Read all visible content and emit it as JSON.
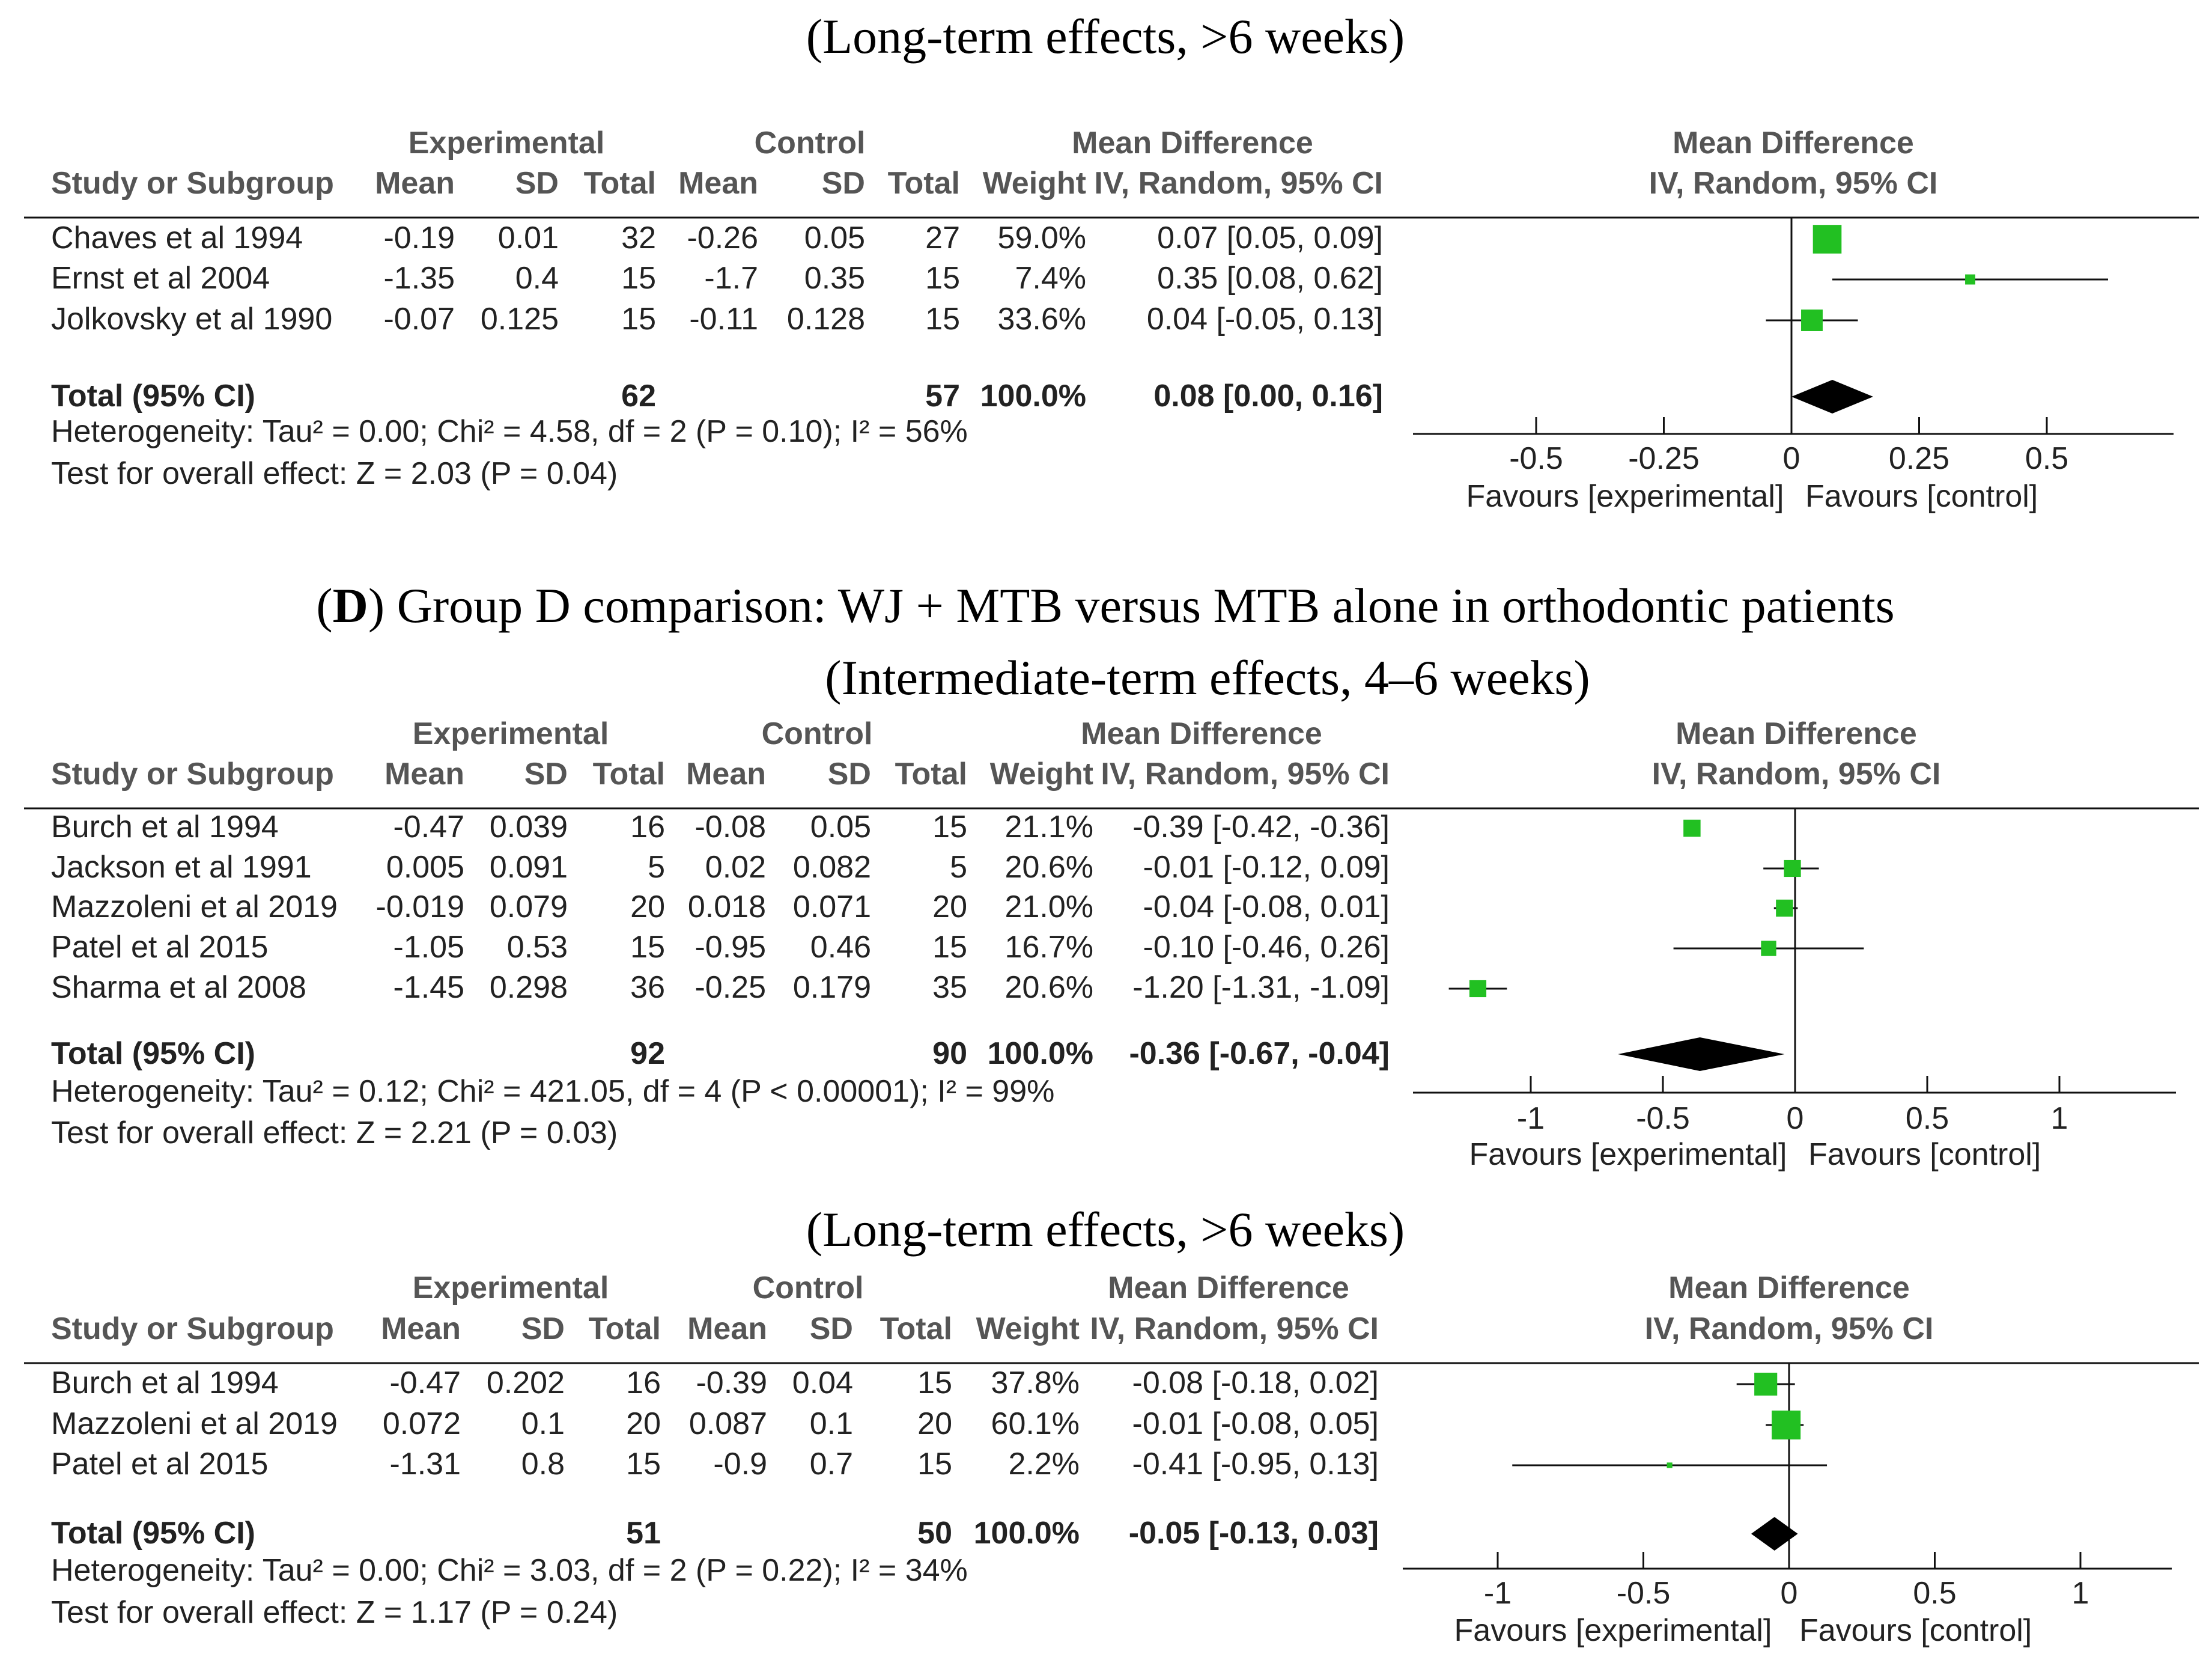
{
  "header_panel": {
    "subtitle": "(Long-term effects, >6 weeks)"
  },
  "panel_d": {
    "label": "D",
    "title_rest": ") Group D comparison: WJ + MTB versus MTB alone in orthodontic patients",
    "title_open": "("
  },
  "columns": {
    "experimental": "Experimental",
    "control": "Control",
    "study": "Study or Subgroup",
    "mean": "Mean",
    "sd": "SD",
    "total": "Total",
    "weight": "Weight",
    "md": "Mean Difference",
    "md_method": "IV, Random, 95% CI"
  },
  "axis_labels": {
    "favours_experimental": "Favours [experimental]",
    "favours_control": "Favours [control]"
  },
  "chart_data": [
    {
      "type": "forest",
      "subtitle": "(Long-term effects, >6 weeks)",
      "x_ticks": [
        "-0.5",
        "-0.25",
        "0",
        "0.25",
        "0.5"
      ],
      "xlim": [
        -0.75,
        0.75
      ],
      "studies": [
        {
          "name": "Chaves et al 1994",
          "e_mean": "-0.19",
          "e_sd": "0.01",
          "e_total": "32",
          "c_mean": "-0.26",
          "c_sd": "0.05",
          "c_total": "27",
          "weight": "59.0%",
          "ci_text": "0.07 [0.05, 0.09]",
          "md": 0.07,
          "lo": 0.05,
          "hi": 0.09,
          "w": 59.0
        },
        {
          "name": "Ernst et al 2004",
          "e_mean": "-1.35",
          "e_sd": "0.4",
          "e_total": "15",
          "c_mean": "-1.7",
          "c_sd": "0.35",
          "c_total": "15",
          "weight": "7.4%",
          "ci_text": "0.35 [0.08, 0.62]",
          "md": 0.35,
          "lo": 0.08,
          "hi": 0.62,
          "w": 7.4
        },
        {
          "name": "Jolkovsky et al 1990",
          "e_mean": "-0.07",
          "e_sd": "0.125",
          "e_total": "15",
          "c_mean": "-0.11",
          "c_sd": "0.128",
          "c_total": "15",
          "weight": "33.6%",
          "ci_text": "0.04 [-0.05, 0.13]",
          "md": 0.04,
          "lo": -0.05,
          "hi": 0.13,
          "w": 33.6
        }
      ],
      "total": {
        "label": "Total (95% CI)",
        "e_total": "62",
        "c_total": "57",
        "weight": "100.0%",
        "ci_text": "0.08 [0.00, 0.16]",
        "md": 0.08,
        "lo": 0.0,
        "hi": 0.16
      },
      "heterogeneity": "Heterogeneity: Tau² = 0.00; Chi² = 4.58, df = 2 (P = 0.10); I² = 56%",
      "overall": "Test for overall effect: Z = 2.03 (P = 0.04)"
    },
    {
      "type": "forest",
      "subtitle": "(Intermediate-term effects, 4–6 weeks)",
      "x_ticks": [
        "-1",
        "-0.5",
        "0",
        "0.5",
        "1"
      ],
      "xlim": [
        -1.4,
        1.4
      ],
      "studies": [
        {
          "name": "Burch et al 1994",
          "e_mean": "-0.47",
          "e_sd": "0.039",
          "e_total": "16",
          "c_mean": "-0.08",
          "c_sd": "0.05",
          "c_total": "15",
          "weight": "21.1%",
          "ci_text": "-0.39 [-0.42, -0.36]",
          "md": -0.39,
          "lo": -0.42,
          "hi": -0.36,
          "w": 21.1
        },
        {
          "name": "Jackson et al 1991",
          "e_mean": "0.005",
          "e_sd": "0.091",
          "e_total": "5",
          "c_mean": "0.02",
          "c_sd": "0.082",
          "c_total": "5",
          "weight": "20.6%",
          "ci_text": "-0.01 [-0.12, 0.09]",
          "md": -0.01,
          "lo": -0.12,
          "hi": 0.09,
          "w": 20.6
        },
        {
          "name": "Mazzoleni et al 2019",
          "e_mean": "-0.019",
          "e_sd": "0.079",
          "e_total": "20",
          "c_mean": "0.018",
          "c_sd": "0.071",
          "c_total": "20",
          "weight": "21.0%",
          "ci_text": "-0.04 [-0.08, 0.01]",
          "md": -0.04,
          "lo": -0.08,
          "hi": 0.01,
          "w": 21.0
        },
        {
          "name": "Patel et al 2015",
          "e_mean": "-1.05",
          "e_sd": "0.53",
          "e_total": "15",
          "c_mean": "-0.95",
          "c_sd": "0.46",
          "c_total": "15",
          "weight": "16.7%",
          "ci_text": "-0.10 [-0.46, 0.26]",
          "md": -0.1,
          "lo": -0.46,
          "hi": 0.26,
          "w": 16.7
        },
        {
          "name": "Sharma et al 2008",
          "e_mean": "-1.45",
          "e_sd": "0.298",
          "e_total": "36",
          "c_mean": "-0.25",
          "c_sd": "0.179",
          "c_total": "35",
          "weight": "20.6%",
          "ci_text": "-1.20 [-1.31, -1.09]",
          "md": -1.2,
          "lo": -1.31,
          "hi": -1.09,
          "w": 20.6
        }
      ],
      "total": {
        "label": "Total (95% CI)",
        "e_total": "92",
        "c_total": "90",
        "weight": "100.0%",
        "ci_text": "-0.36 [-0.67, -0.04]",
        "md": -0.36,
        "lo": -0.67,
        "hi": -0.04
      },
      "heterogeneity": "Heterogeneity: Tau² = 0.12; Chi² = 421.05, df = 4 (P < 0.00001); I² = 99%",
      "overall": "Test for overall effect: Z = 2.21 (P = 0.03)"
    },
    {
      "type": "forest",
      "subtitle": "(Long-term effects, >6 weeks)",
      "x_ticks": [
        "-1",
        "-0.5",
        "0",
        "0.5",
        "1"
      ],
      "xlim": [
        -1.4,
        1.4
      ],
      "studies": [
        {
          "name": "Burch et al 1994",
          "e_mean": "-0.47",
          "e_sd": "0.202",
          "e_total": "16",
          "c_mean": "-0.39",
          "c_sd": "0.04",
          "c_total": "15",
          "weight": "37.8%",
          "ci_text": "-0.08 [-0.18, 0.02]",
          "md": -0.08,
          "lo": -0.18,
          "hi": 0.02,
          "w": 37.8
        },
        {
          "name": "Mazzoleni et al 2019",
          "e_mean": "0.072",
          "e_sd": "0.1",
          "e_total": "20",
          "c_mean": "0.087",
          "c_sd": "0.1",
          "c_total": "20",
          "weight": "60.1%",
          "ci_text": "-0.01 [-0.08, 0.05]",
          "md": -0.01,
          "lo": -0.08,
          "hi": 0.05,
          "w": 60.1
        },
        {
          "name": "Patel et al 2015",
          "e_mean": "-1.31",
          "e_sd": "0.8",
          "e_total": "15",
          "c_mean": "-0.9",
          "c_sd": "0.7",
          "c_total": "15",
          "weight": "2.2%",
          "ci_text": "-0.41 [-0.95, 0.13]",
          "md": -0.41,
          "lo": -0.95,
          "hi": 0.13,
          "w": 2.2
        }
      ],
      "total": {
        "label": "Total (95% CI)",
        "e_total": "51",
        "c_total": "50",
        "weight": "100.0%",
        "ci_text": "-0.05 [-0.13, 0.03]",
        "md": -0.05,
        "lo": -0.13,
        "hi": 0.03
      },
      "heterogeneity": "Heterogeneity: Tau² = 0.00; Chi² = 3.03, df = 2 (P = 0.22); I² = 34%",
      "overall": "Test for overall effect: Z = 1.17 (P = 0.24)"
    }
  ]
}
